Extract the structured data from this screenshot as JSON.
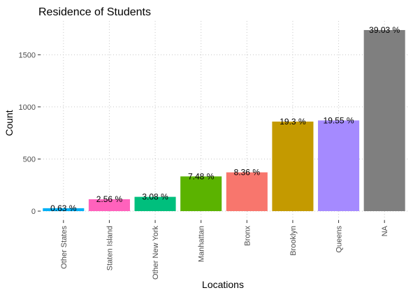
{
  "chart_data": {
    "type": "bar",
    "title": "Residence of Students",
    "xlabel": "Locations",
    "ylabel": "Count",
    "categories": [
      "Other States",
      "Staten Island",
      "Other New York",
      "Manhattan",
      "Bronx",
      "Brooklyn",
      "Queens",
      "NA"
    ],
    "values": [
      28,
      114,
      137,
      333,
      372,
      859,
      870,
      1737
    ],
    "labels": [
      "0.63 %",
      "2.56 %",
      "3.08 %",
      "7.48 %",
      "8.36 %",
      "19.3 %",
      "19.55 %",
      "39.03 %"
    ],
    "colors": [
      "#00B0F6",
      "#FF62BC",
      "#00BF7D",
      "#5BB300",
      "#F8766D",
      "#C49A00",
      "#A58AFF",
      "#7F7F7F"
    ],
    "yticks": [
      0,
      500,
      1000,
      1500
    ],
    "ytick_labels": [
      "0",
      "500",
      "1000",
      "1500"
    ],
    "ylim": [
      -87,
      1824
    ],
    "grid": true,
    "legend": "none"
  }
}
